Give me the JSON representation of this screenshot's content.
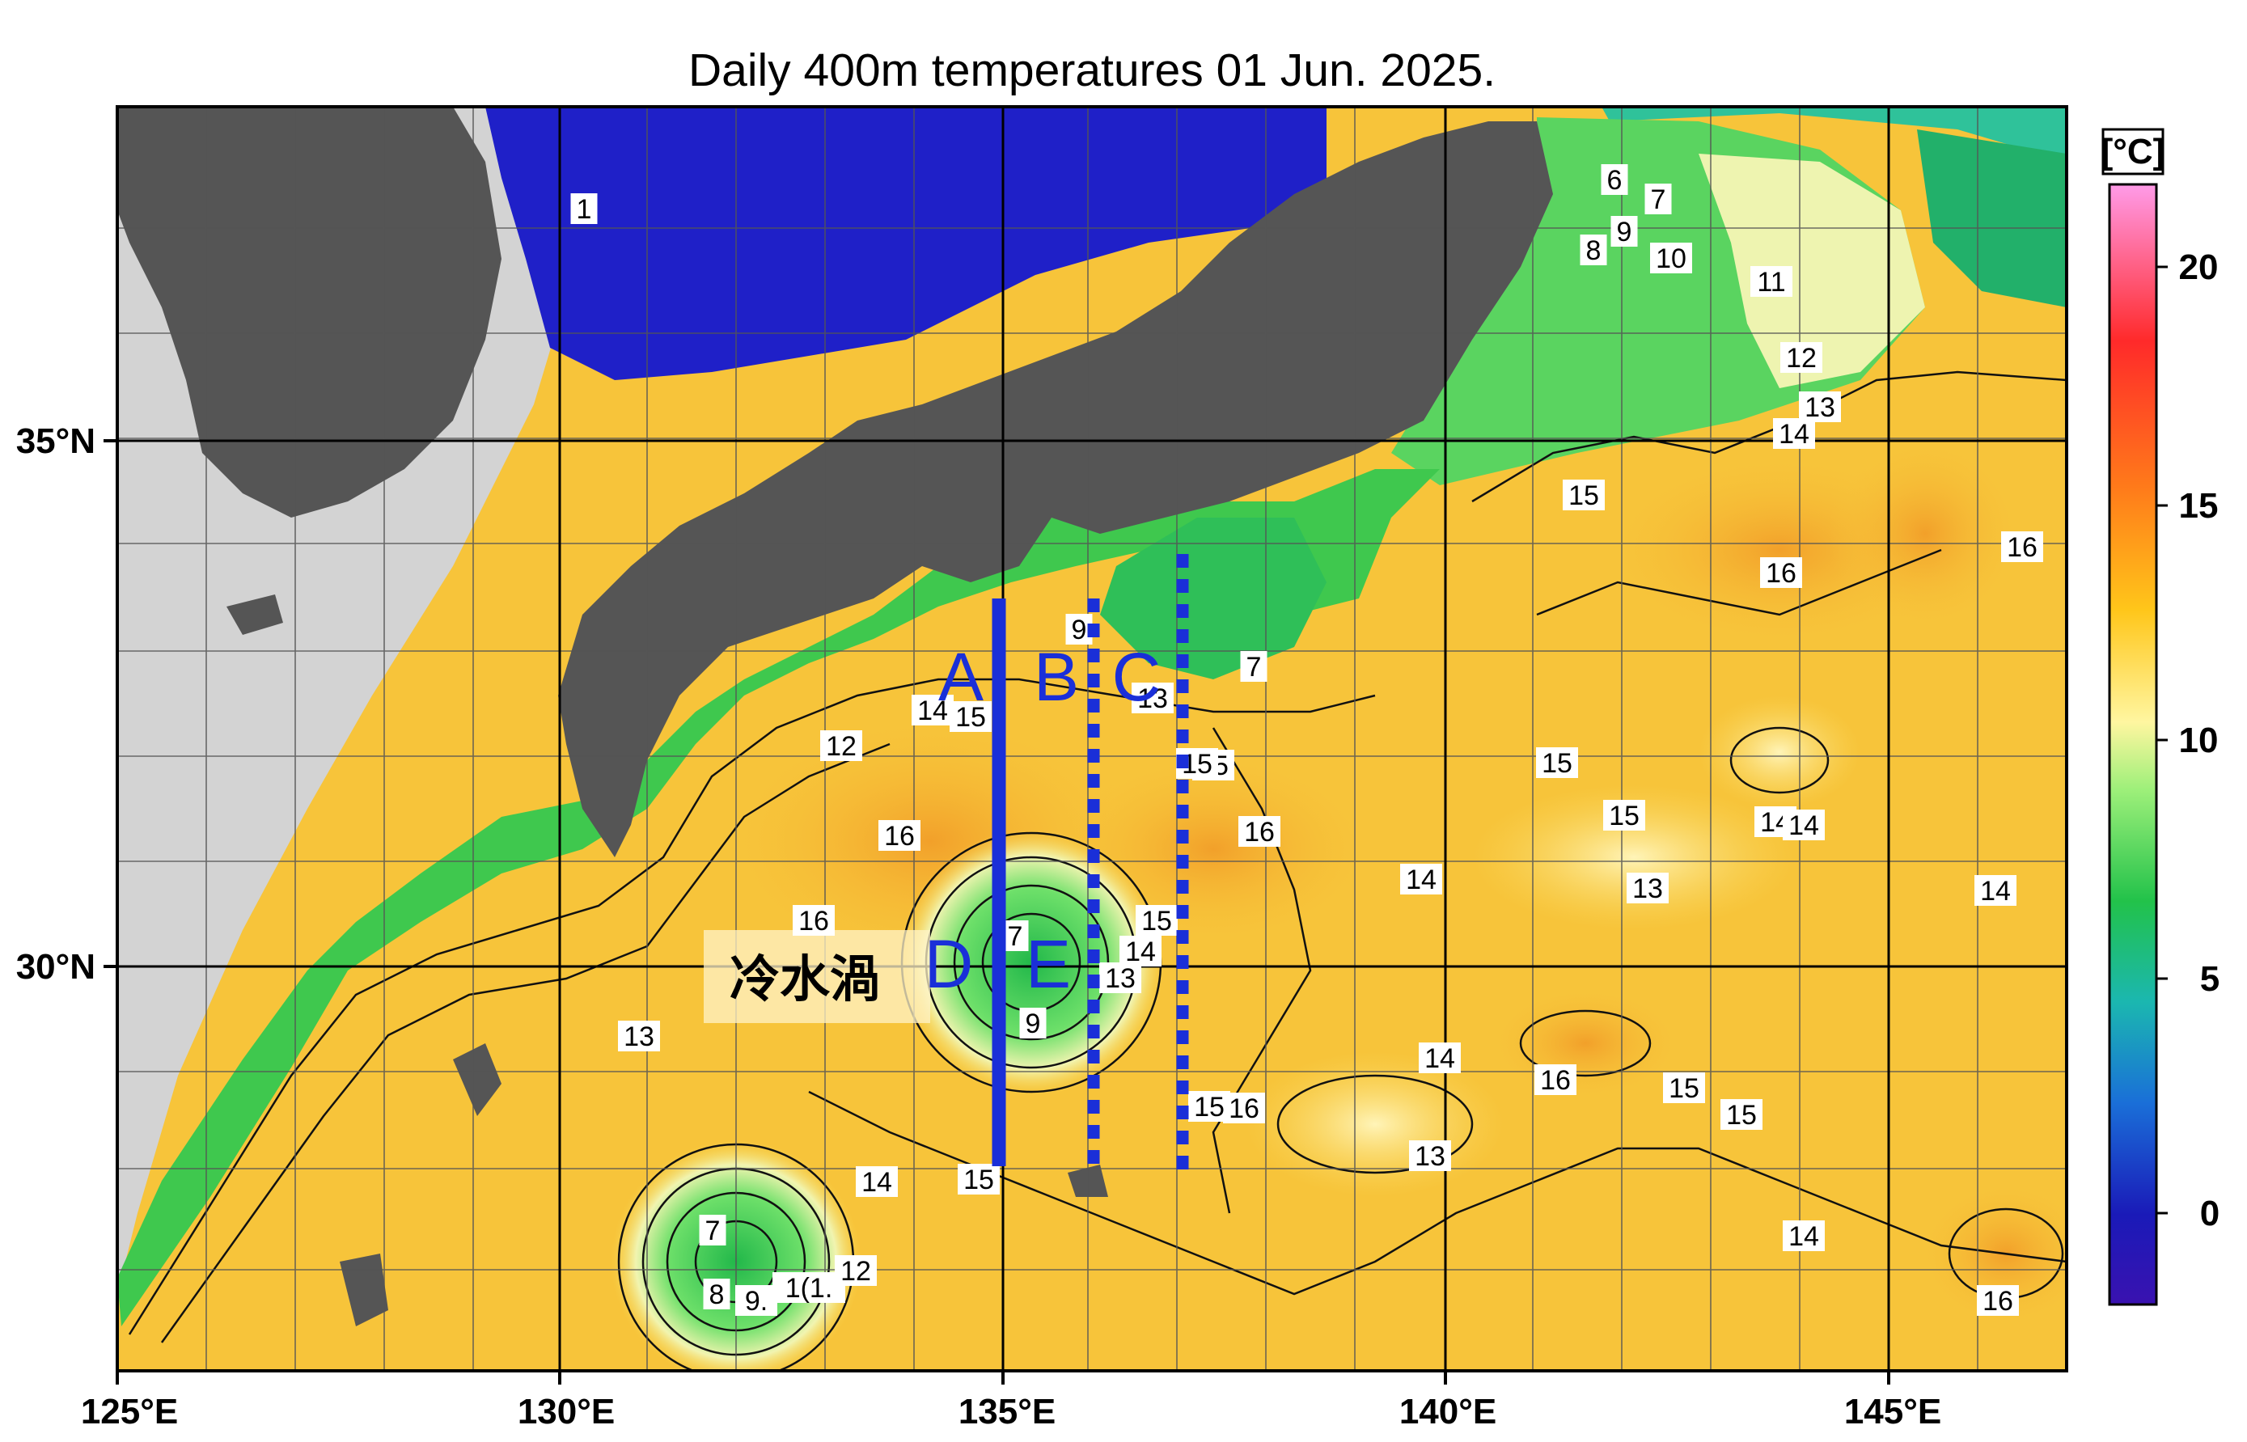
{
  "title": "Daily 400m temperatures 01 Jun. 2025.",
  "colorbar": {
    "unit": "[°C]",
    "ticks": [
      "20",
      "15",
      "10",
      "5",
      "0"
    ],
    "colors": [
      "#ff9be8",
      "#ff2a2a",
      "#ff7a1a",
      "#ffc61a",
      "#fff6a0",
      "#9ef07a",
      "#22c24a",
      "#1bb7b0",
      "#1a6fd8",
      "#1a1ab8",
      "#3a12b0"
    ]
  },
  "axes": {
    "lon_labels": [
      "125°E",
      "130°E",
      "135°E",
      "140°E",
      "145°E"
    ],
    "lat_labels": [
      "35°N",
      "30°N"
    ]
  },
  "sections": {
    "A": "A",
    "B": "B",
    "C": "C",
    "D": "D",
    "E": "E"
  },
  "annotation": "冷水渦",
  "contour_labels": [
    "1",
    "6",
    "7",
    "9",
    "8",
    "10",
    "11",
    "12",
    "13",
    "14",
    "15",
    "16",
    "16",
    "15",
    "9",
    "7",
    "14",
    "15",
    "13",
    "12",
    "15",
    "16",
    "16",
    "14",
    "15",
    "16",
    "15",
    "14",
    "14",
    "13",
    "14",
    "16",
    "7",
    "9",
    "13",
    "14",
    "13",
    "15",
    "14",
    "16",
    "15",
    "15",
    "15",
    "13",
    "14",
    "15",
    "14",
    "7",
    "8",
    "9.",
    "1(1.",
    "12",
    "16"
  ]
}
